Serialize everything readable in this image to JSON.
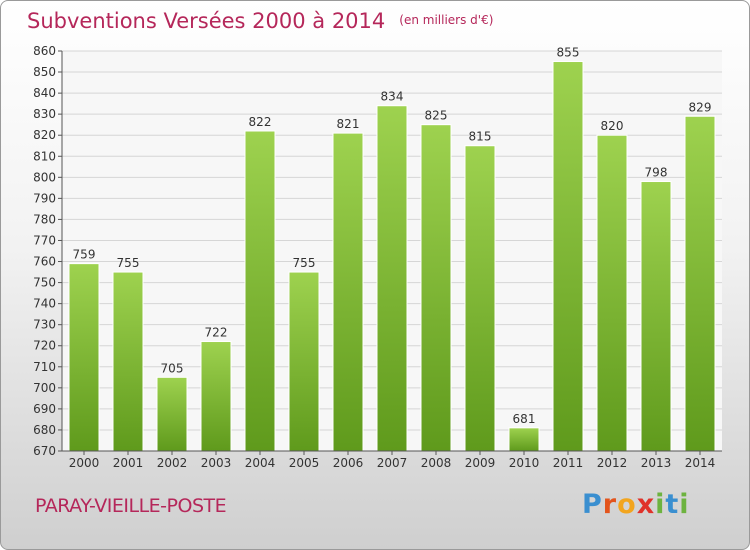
{
  "title": "Subventions Versées 2000 à 2014",
  "unit": "(en milliers d'€)",
  "town": "PARAY-VIEILLE-POSTE",
  "logo": "Proxiti",
  "chart_data": {
    "type": "bar",
    "categories": [
      "2000",
      "2001",
      "2002",
      "2003",
      "2004",
      "2005",
      "2006",
      "2007",
      "2008",
      "2009",
      "2010",
      "2011",
      "2012",
      "2013",
      "2014"
    ],
    "values": [
      759,
      755,
      705,
      722,
      822,
      755,
      821,
      834,
      825,
      815,
      681,
      855,
      820,
      798,
      829
    ],
    "ylim": [
      670,
      860
    ],
    "yticks": [
      670,
      680,
      690,
      700,
      710,
      720,
      730,
      740,
      750,
      760,
      770,
      780,
      790,
      800,
      810,
      820,
      830,
      840,
      850,
      860
    ],
    "grid": true,
    "bar_color": "#7ab52f"
  }
}
